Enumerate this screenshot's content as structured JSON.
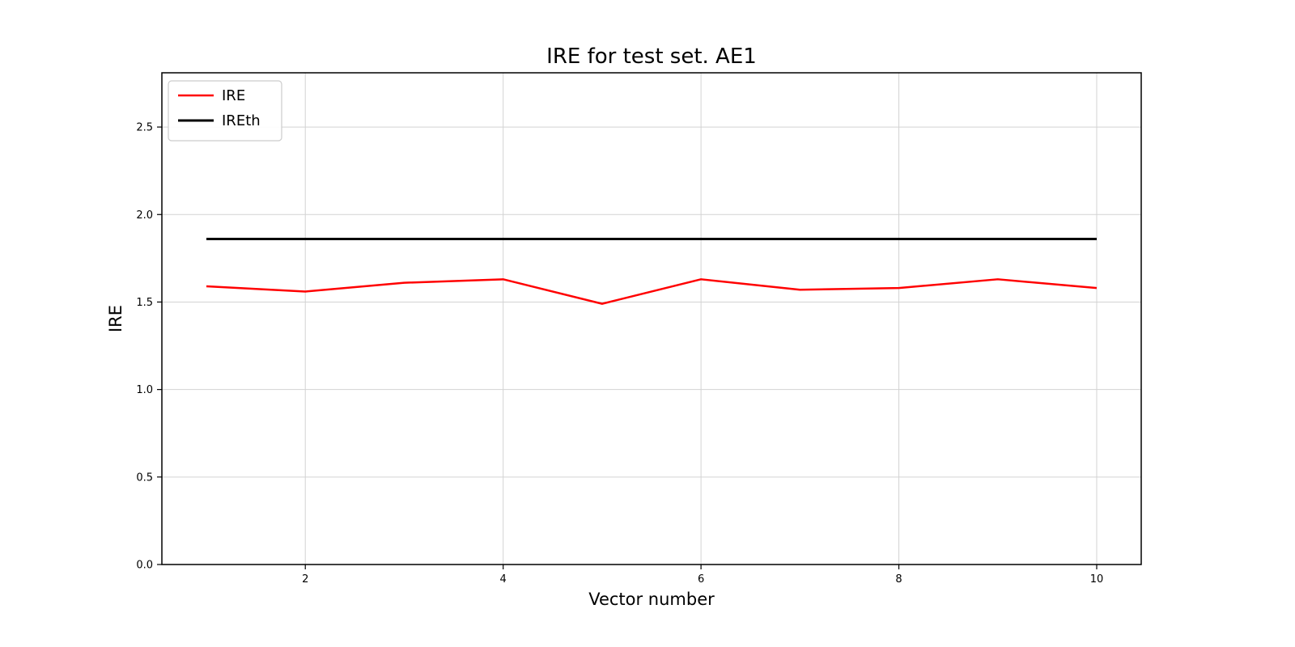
{
  "chart_data": {
    "type": "line",
    "title": "IRE for test set. AE1",
    "xlabel": "Vector number",
    "ylabel": "IRE",
    "x": [
      1,
      2,
      3,
      4,
      5,
      6,
      7,
      8,
      9,
      10
    ],
    "series": [
      {
        "name": "IRE",
        "color": "#ff0000",
        "values": [
          1.59,
          1.56,
          1.61,
          1.63,
          1.49,
          1.63,
          1.57,
          1.58,
          1.63,
          1.58
        ]
      },
      {
        "name": "IREth",
        "color": "#000000",
        "values": [
          1.86,
          1.86,
          1.86,
          1.86,
          1.86,
          1.86,
          1.86,
          1.86,
          1.86,
          1.86
        ]
      }
    ],
    "xlim": [
      0.55,
      10.45
    ],
    "ylim": [
      0.0,
      2.81
    ],
    "xticks": [
      2,
      4,
      6,
      8,
      10
    ],
    "xtick_labels": [
      "2",
      "4",
      "6",
      "8",
      "10"
    ],
    "yticks": [
      0.0,
      0.5,
      1.0,
      1.5,
      2.0,
      2.5
    ],
    "ytick_labels": [
      "0.0",
      "0.5",
      "1.0",
      "1.5",
      "2.0",
      "2.5"
    ],
    "grid": true,
    "legend_position": "upper left",
    "colors": {
      "grid": "#d3d3d3",
      "axes_border": "#000000",
      "legend_border": "#cccccc",
      "background": "#ffffff"
    }
  }
}
